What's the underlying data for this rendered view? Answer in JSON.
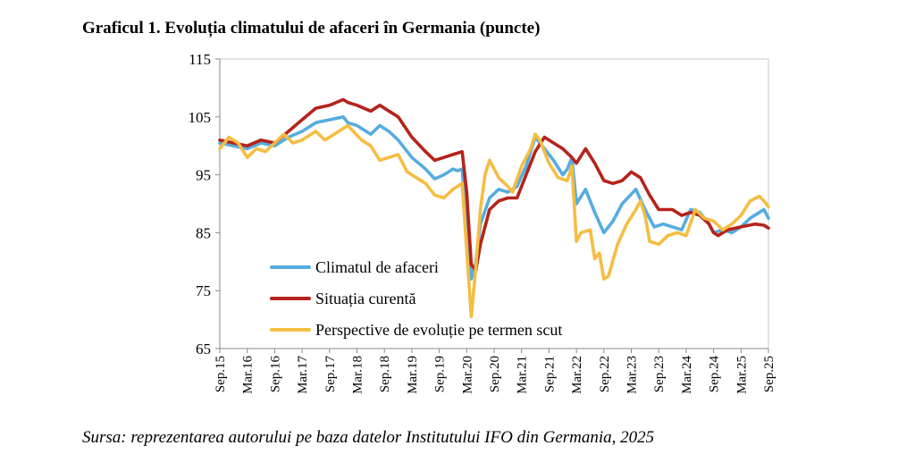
{
  "chart_data": {
    "type": "line",
    "title": "Graficul 1. Evoluția climatului de afaceri în Germania (puncte)",
    "source": "Sursa: reprezentarea autorului pe baza datelor Institutului IFO din Germania, 2025",
    "ylim": [
      65,
      115
    ],
    "yticks": [
      65,
      75,
      85,
      95,
      105,
      115
    ],
    "xlim": [
      "2015-09",
      "2025-09"
    ],
    "xticks": [
      "Sep.15",
      "Mar.16",
      "Sep.16",
      "Mar.17",
      "Sep.17",
      "Mar.18",
      "Sep.18",
      "Mar.19",
      "Sep.19",
      "Mar.20",
      "Sep.20",
      "Mar.21",
      "Sep.21",
      "Mar.22",
      "Sep.22",
      "Mar.23",
      "Sep.23",
      "Mar.24",
      "Sep.24",
      "Mar.25",
      "Sep.25"
    ],
    "grid": false,
    "legend_position": "bottom-left",
    "series": [
      {
        "name": "Climatul de afaceri",
        "color": "#56acdf",
        "points": [
          [
            "2015-09",
            100.5
          ],
          [
            "2015-12",
            100.0
          ],
          [
            "2016-03",
            99.5
          ],
          [
            "2016-06",
            100.5
          ],
          [
            "2016-09",
            100.0
          ],
          [
            "2016-12",
            101.5
          ],
          [
            "2017-03",
            102.5
          ],
          [
            "2017-06",
            104.0
          ],
          [
            "2017-09",
            104.5
          ],
          [
            "2017-12",
            105.0
          ],
          [
            "2018-01",
            104.0
          ],
          [
            "2018-03",
            103.5
          ],
          [
            "2018-06",
            102.0
          ],
          [
            "2018-08",
            103.5
          ],
          [
            "2018-10",
            102.5
          ],
          [
            "2018-12",
            101.0
          ],
          [
            "2019-03",
            98.0
          ],
          [
            "2019-06",
            96.0
          ],
          [
            "2019-08",
            94.3
          ],
          [
            "2019-10",
            95.0
          ],
          [
            "2019-12",
            96.0
          ],
          [
            "2020-01",
            95.7
          ],
          [
            "2020-02",
            96.0
          ],
          [
            "2020-03",
            86.0
          ],
          [
            "2020-04",
            77.0
          ],
          [
            "2020-05",
            80.0
          ],
          [
            "2020-06",
            86.5
          ],
          [
            "2020-08",
            91.0
          ],
          [
            "2020-10",
            92.5
          ],
          [
            "2020-12",
            92.0
          ],
          [
            "2021-02",
            93.0
          ],
          [
            "2021-04",
            96.5
          ],
          [
            "2021-06",
            101.5
          ],
          [
            "2021-08",
            99.5
          ],
          [
            "2021-10",
            97.5
          ],
          [
            "2021-12",
            95.0
          ],
          [
            "2022-01",
            96.0
          ],
          [
            "2022-02",
            98.0
          ],
          [
            "2022-03",
            90.0
          ],
          [
            "2022-05",
            92.5
          ],
          [
            "2022-07",
            88.5
          ],
          [
            "2022-09",
            85.0
          ],
          [
            "2022-11",
            87.0
          ],
          [
            "2023-01",
            90.0
          ],
          [
            "2023-04",
            92.5
          ],
          [
            "2023-06",
            89.0
          ],
          [
            "2023-08",
            86.0
          ],
          [
            "2023-10",
            86.5
          ],
          [
            "2023-12",
            86.0
          ],
          [
            "2024-02",
            85.5
          ],
          [
            "2024-04",
            89.0
          ],
          [
            "2024-06",
            88.5
          ],
          [
            "2024-08",
            86.5
          ],
          [
            "2024-09",
            85.0
          ],
          [
            "2024-11",
            85.5
          ],
          [
            "2025-01",
            85.0
          ],
          [
            "2025-03",
            86.0
          ],
          [
            "2025-05",
            87.5
          ],
          [
            "2025-07",
            88.5
          ],
          [
            "2025-08",
            89.0
          ],
          [
            "2025-09",
            87.5
          ]
        ]
      },
      {
        "name": "Situația curentă",
        "color": "#b5231c",
        "points": [
          [
            "2015-09",
            101.0
          ],
          [
            "2015-12",
            100.5
          ],
          [
            "2016-03",
            100.0
          ],
          [
            "2016-06",
            101.0
          ],
          [
            "2016-09",
            100.5
          ],
          [
            "2016-12",
            102.5
          ],
          [
            "2017-03",
            104.5
          ],
          [
            "2017-06",
            106.5
          ],
          [
            "2017-09",
            107.0
          ],
          [
            "2017-12",
            108.0
          ],
          [
            "2018-01",
            107.5
          ],
          [
            "2018-03",
            107.0
          ],
          [
            "2018-06",
            106.0
          ],
          [
            "2018-08",
            107.0
          ],
          [
            "2018-10",
            106.0
          ],
          [
            "2018-12",
            105.0
          ],
          [
            "2019-03",
            101.5
          ],
          [
            "2019-06",
            99.0
          ],
          [
            "2019-08",
            97.5
          ],
          [
            "2019-10",
            98.0
          ],
          [
            "2019-12",
            98.5
          ],
          [
            "2020-02",
            99.0
          ],
          [
            "2020-03",
            92.0
          ],
          [
            "2020-04",
            79.5
          ],
          [
            "2020-05",
            78.5
          ],
          [
            "2020-06",
            83.0
          ],
          [
            "2020-08",
            89.0
          ],
          [
            "2020-10",
            90.5
          ],
          [
            "2020-12",
            91.0
          ],
          [
            "2021-02",
            91.0
          ],
          [
            "2021-04",
            95.0
          ],
          [
            "2021-06",
            99.0
          ],
          [
            "2021-08",
            101.5
          ],
          [
            "2021-10",
            100.5
          ],
          [
            "2021-12",
            99.5
          ],
          [
            "2022-02",
            98.0
          ],
          [
            "2022-03",
            97.0
          ],
          [
            "2022-05",
            99.5
          ],
          [
            "2022-07",
            97.0
          ],
          [
            "2022-09",
            94.0
          ],
          [
            "2022-11",
            93.5
          ],
          [
            "2023-01",
            94.0
          ],
          [
            "2023-03",
            95.5
          ],
          [
            "2023-05",
            94.5
          ],
          [
            "2023-07",
            91.5
          ],
          [
            "2023-09",
            89.0
          ],
          [
            "2023-12",
            89.0
          ],
          [
            "2024-02",
            88.0
          ],
          [
            "2024-04",
            88.5
          ],
          [
            "2024-06",
            88.0
          ],
          [
            "2024-08",
            86.5
          ],
          [
            "2024-09",
            85.0
          ],
          [
            "2024-10",
            84.5
          ],
          [
            "2024-12",
            85.5
          ],
          [
            "2025-03",
            86.0
          ],
          [
            "2025-06",
            86.5
          ],
          [
            "2025-08",
            86.3
          ],
          [
            "2025-09",
            85.8
          ]
        ]
      },
      {
        "name": "Perspective de evoluție pe termen scut",
        "color": "#f5bd42",
        "points": [
          [
            "2015-09",
            99.5
          ],
          [
            "2015-11",
            101.5
          ],
          [
            "2016-01",
            100.5
          ],
          [
            "2016-03",
            98.0
          ],
          [
            "2016-05",
            99.5
          ],
          [
            "2016-07",
            99.0
          ],
          [
            "2016-09",
            100.5
          ],
          [
            "2016-11",
            102.0
          ],
          [
            "2017-01",
            100.5
          ],
          [
            "2017-03",
            101.0
          ],
          [
            "2017-06",
            102.5
          ],
          [
            "2017-08",
            101.0
          ],
          [
            "2017-11",
            102.5
          ],
          [
            "2018-01",
            103.5
          ],
          [
            "2018-04",
            101.0
          ],
          [
            "2018-06",
            100.0
          ],
          [
            "2018-08",
            97.5
          ],
          [
            "2018-10",
            98.0
          ],
          [
            "2018-12",
            98.5
          ],
          [
            "2019-02",
            95.5
          ],
          [
            "2019-04",
            94.5
          ],
          [
            "2019-06",
            93.5
          ],
          [
            "2019-08",
            91.5
          ],
          [
            "2019-10",
            91.0
          ],
          [
            "2019-12",
            92.5
          ],
          [
            "2020-02",
            93.5
          ],
          [
            "2020-03",
            82.0
          ],
          [
            "2020-04",
            70.5
          ],
          [
            "2020-05",
            79.0
          ],
          [
            "2020-06",
            89.0
          ],
          [
            "2020-07",
            95.0
          ],
          [
            "2020-08",
            97.5
          ],
          [
            "2020-10",
            94.5
          ],
          [
            "2020-12",
            93.0
          ],
          [
            "2021-01",
            92.0
          ],
          [
            "2021-03",
            96.5
          ],
          [
            "2021-05",
            99.5
          ],
          [
            "2021-06",
            102.0
          ],
          [
            "2021-07",
            101.0
          ],
          [
            "2021-09",
            97.0
          ],
          [
            "2021-11",
            94.5
          ],
          [
            "2022-01",
            94.0
          ],
          [
            "2022-02",
            96.5
          ],
          [
            "2022-03",
            83.5
          ],
          [
            "2022-04",
            85.0
          ],
          [
            "2022-06",
            85.5
          ],
          [
            "2022-07",
            80.5
          ],
          [
            "2022-08",
            81.5
          ],
          [
            "2022-09",
            77.0
          ],
          [
            "2022-10",
            77.5
          ],
          [
            "2022-12",
            83.0
          ],
          [
            "2023-02",
            86.5
          ],
          [
            "2023-04",
            89.0
          ],
          [
            "2023-05",
            90.5
          ],
          [
            "2023-06",
            88.0
          ],
          [
            "2023-07",
            83.5
          ],
          [
            "2023-09",
            83.0
          ],
          [
            "2023-11",
            84.5
          ],
          [
            "2024-01",
            85.0
          ],
          [
            "2024-03",
            84.5
          ],
          [
            "2024-05",
            89.0
          ],
          [
            "2024-07",
            87.5
          ],
          [
            "2024-09",
            87.0
          ],
          [
            "2024-11",
            85.5
          ],
          [
            "2025-01",
            86.5
          ],
          [
            "2025-03",
            88.0
          ],
          [
            "2025-05",
            90.5
          ],
          [
            "2025-07",
            91.3
          ],
          [
            "2025-08",
            90.5
          ],
          [
            "2025-09",
            89.5
          ]
        ]
      }
    ]
  }
}
